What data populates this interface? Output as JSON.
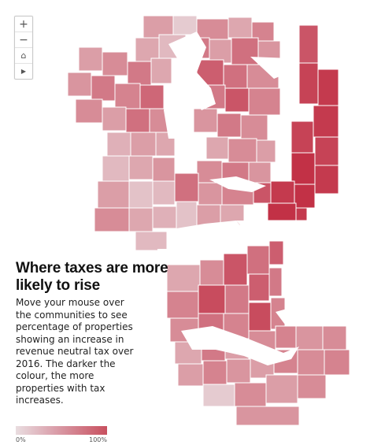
{
  "map": {
    "title": "Where taxes are more likely to rise",
    "description": "Move your mouse over the communities to see percentage of properties showing an increase in revenue neutral tax over 2016. The darker the colour, the more properties with tax increases.",
    "legend": {
      "min_label": "0%",
      "max_label": "100%",
      "color_low": "#e9dde0",
      "color_high": "#c8505f"
    },
    "zoom_controls": [
      {
        "name": "zoom-in",
        "glyph": "+"
      },
      {
        "name": "zoom-out",
        "glyph": "−"
      },
      {
        "name": "home",
        "glyph": "⌂"
      },
      {
        "name": "play",
        "glyph": "▶"
      }
    ]
  }
}
